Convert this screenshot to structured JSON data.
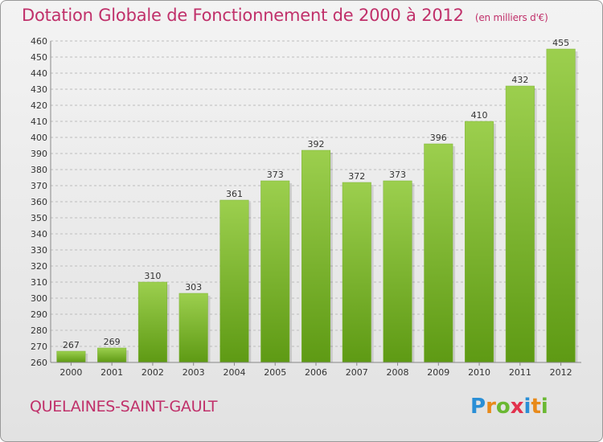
{
  "header": {
    "title": "Dotation Globale de Fonctionnement de 2000 à 2012",
    "subtitle": "(en milliers d'€)"
  },
  "footer": {
    "commune": "QUELAINES-SAINT-GAULT",
    "logo_text": "Proxiti"
  },
  "colors": {
    "accent": "#c0306a",
    "bar_top": "#9ccf4e",
    "bar_bottom": "#5e9a14"
  },
  "chart_data": {
    "type": "bar",
    "title": "Dotation Globale de Fonctionnement de 2000 à 2012",
    "xlabel": "",
    "ylabel": "",
    "categories": [
      "2000",
      "2001",
      "2002",
      "2003",
      "2004",
      "2005",
      "2006",
      "2007",
      "2008",
      "2009",
      "2010",
      "2011",
      "2012"
    ],
    "values": [
      267,
      269,
      310,
      303,
      361,
      373,
      392,
      372,
      373,
      396,
      410,
      432,
      455
    ],
    "ylim": [
      260,
      460
    ],
    "yticks": [
      260,
      270,
      280,
      290,
      300,
      310,
      320,
      330,
      340,
      350,
      360,
      370,
      380,
      390,
      400,
      410,
      420,
      430,
      440,
      450,
      460
    ],
    "grid": true
  }
}
